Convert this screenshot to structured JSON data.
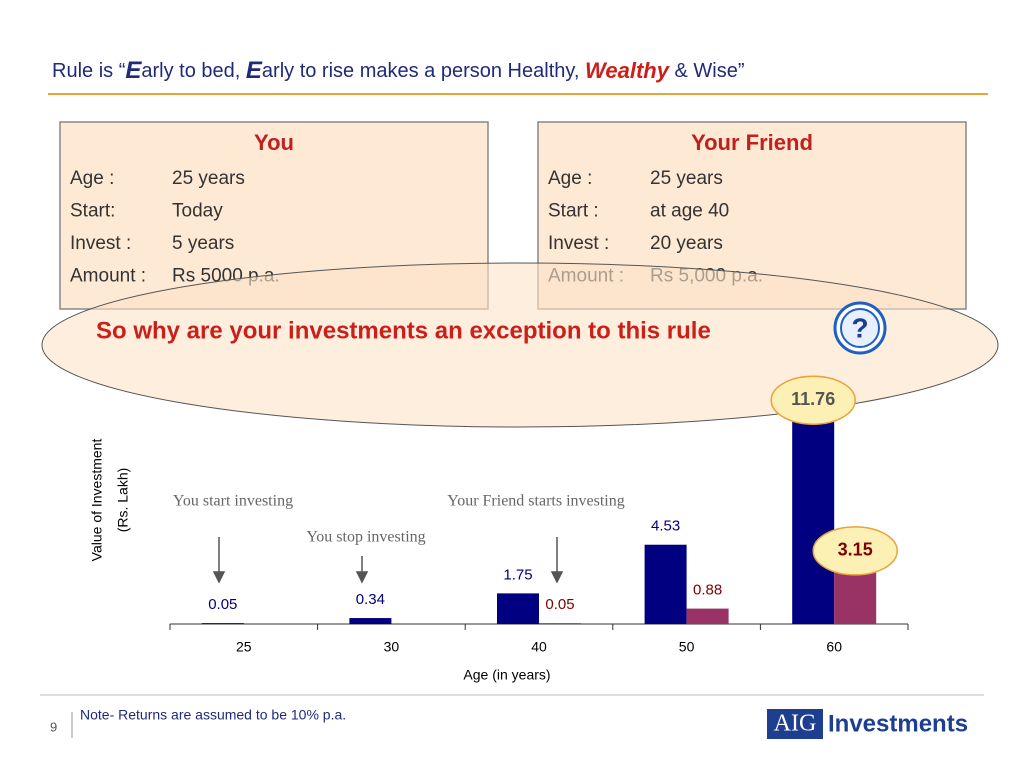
{
  "title_parts": [
    "Rule is “",
    "E",
    "arly to bed, ",
    "E",
    "arly to rise makes a person Healthy, ",
    "Wealthy",
    " & Wise”"
  ],
  "panels": [
    {
      "heading": "You",
      "rows": [
        [
          "Age :",
          "25 years"
        ],
        [
          "Start:",
          "Today"
        ],
        [
          "Invest :",
          "5 years"
        ],
        [
          "Amount :",
          "Rs 5000 p.a."
        ]
      ]
    },
    {
      "heading": "Your Friend",
      "rows": [
        [
          "Age :",
          "25 years"
        ],
        [
          "Start :",
          "at age 40"
        ],
        [
          "Invest :",
          "20 years"
        ],
        [
          "Amount :",
          "Rs 5,000 p.a."
        ]
      ]
    }
  ],
  "question": "So why are your investments an exception to this rule",
  "chart_data": {
    "type": "bar",
    "ylabel": [
      "Value of Investment",
      "(Rs. Lakh)"
    ],
    "xlabel": "Age (in years)",
    "categories": [
      "25",
      "30",
      "40",
      "50",
      "60"
    ],
    "series": [
      {
        "color": "#000080",
        "label_color": "#000080",
        "values": [
          0.05,
          0.34,
          1.75,
          4.53,
          11.76
        ]
      },
      {
        "color": "#993366",
        "label_color": "#800000",
        "values": [
          null,
          null,
          0.05,
          0.88,
          3.15
        ]
      }
    ],
    "ylim": [
      0,
      12
    ],
    "annotations": [
      "You start investing",
      "You stop investing",
      "Your Friend starts investing"
    ]
  },
  "footer": {
    "page": "9",
    "note": "Note- Returns are assumed to be 10% p.a.",
    "logo_box": "AIG",
    "logo_text": "Investments"
  }
}
